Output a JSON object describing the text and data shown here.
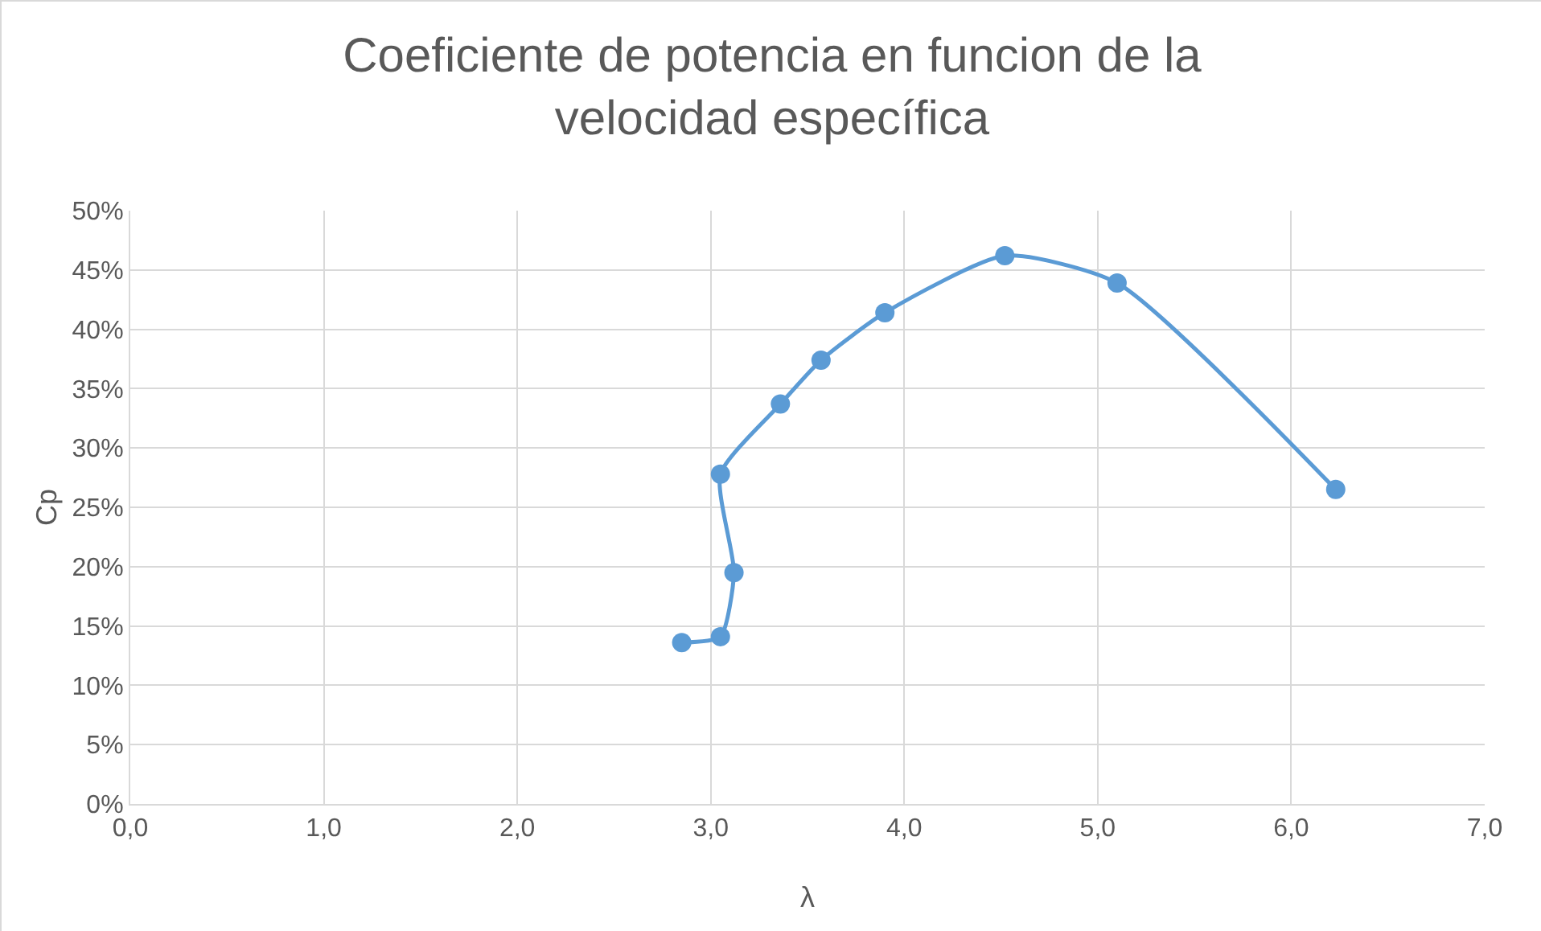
{
  "chart_data": {
    "type": "line",
    "title": "Coeficiente de potencia en funcion de la velocidad específica",
    "xlabel": "λ",
    "ylabel": "Cp",
    "x": [
      2.85,
      3.05,
      3.12,
      3.05,
      3.36,
      3.57,
      3.9,
      4.52,
      5.1,
      6.23
    ],
    "series": [
      {
        "color": "#5b9bd5",
        "values": [
          13.6,
          14.1,
          19.5,
          27.8,
          33.7,
          37.4,
          41.4,
          46.2,
          43.9,
          26.5
        ]
      }
    ],
    "xlim": [
      0,
      7
    ],
    "xticks": [
      {
        "value": 0,
        "label": "0,0"
      },
      {
        "value": 1,
        "label": "1,0"
      },
      {
        "value": 2,
        "label": "2,0"
      },
      {
        "value": 3,
        "label": "3,0"
      },
      {
        "value": 4,
        "label": "4,0"
      },
      {
        "value": 5,
        "label": "5,0"
      },
      {
        "value": 6,
        "label": "6,0"
      },
      {
        "value": 7,
        "label": "7,0"
      }
    ],
    "ylim": [
      0,
      50
    ],
    "yticks": [
      {
        "value": 0,
        "label": "0%"
      },
      {
        "value": 5,
        "label": "5%"
      },
      {
        "value": 10,
        "label": "10%"
      },
      {
        "value": 15,
        "label": "15%"
      },
      {
        "value": 20,
        "label": "20%"
      },
      {
        "value": 25,
        "label": "25%"
      },
      {
        "value": 30,
        "label": "30%"
      },
      {
        "value": 35,
        "label": "35%"
      },
      {
        "value": 40,
        "label": "40%"
      },
      {
        "value": 45,
        "label": "45%"
      },
      {
        "value": 50,
        "label": "50%"
      }
    ],
    "grid": true,
    "marker": "circle",
    "line_style": "solid"
  }
}
